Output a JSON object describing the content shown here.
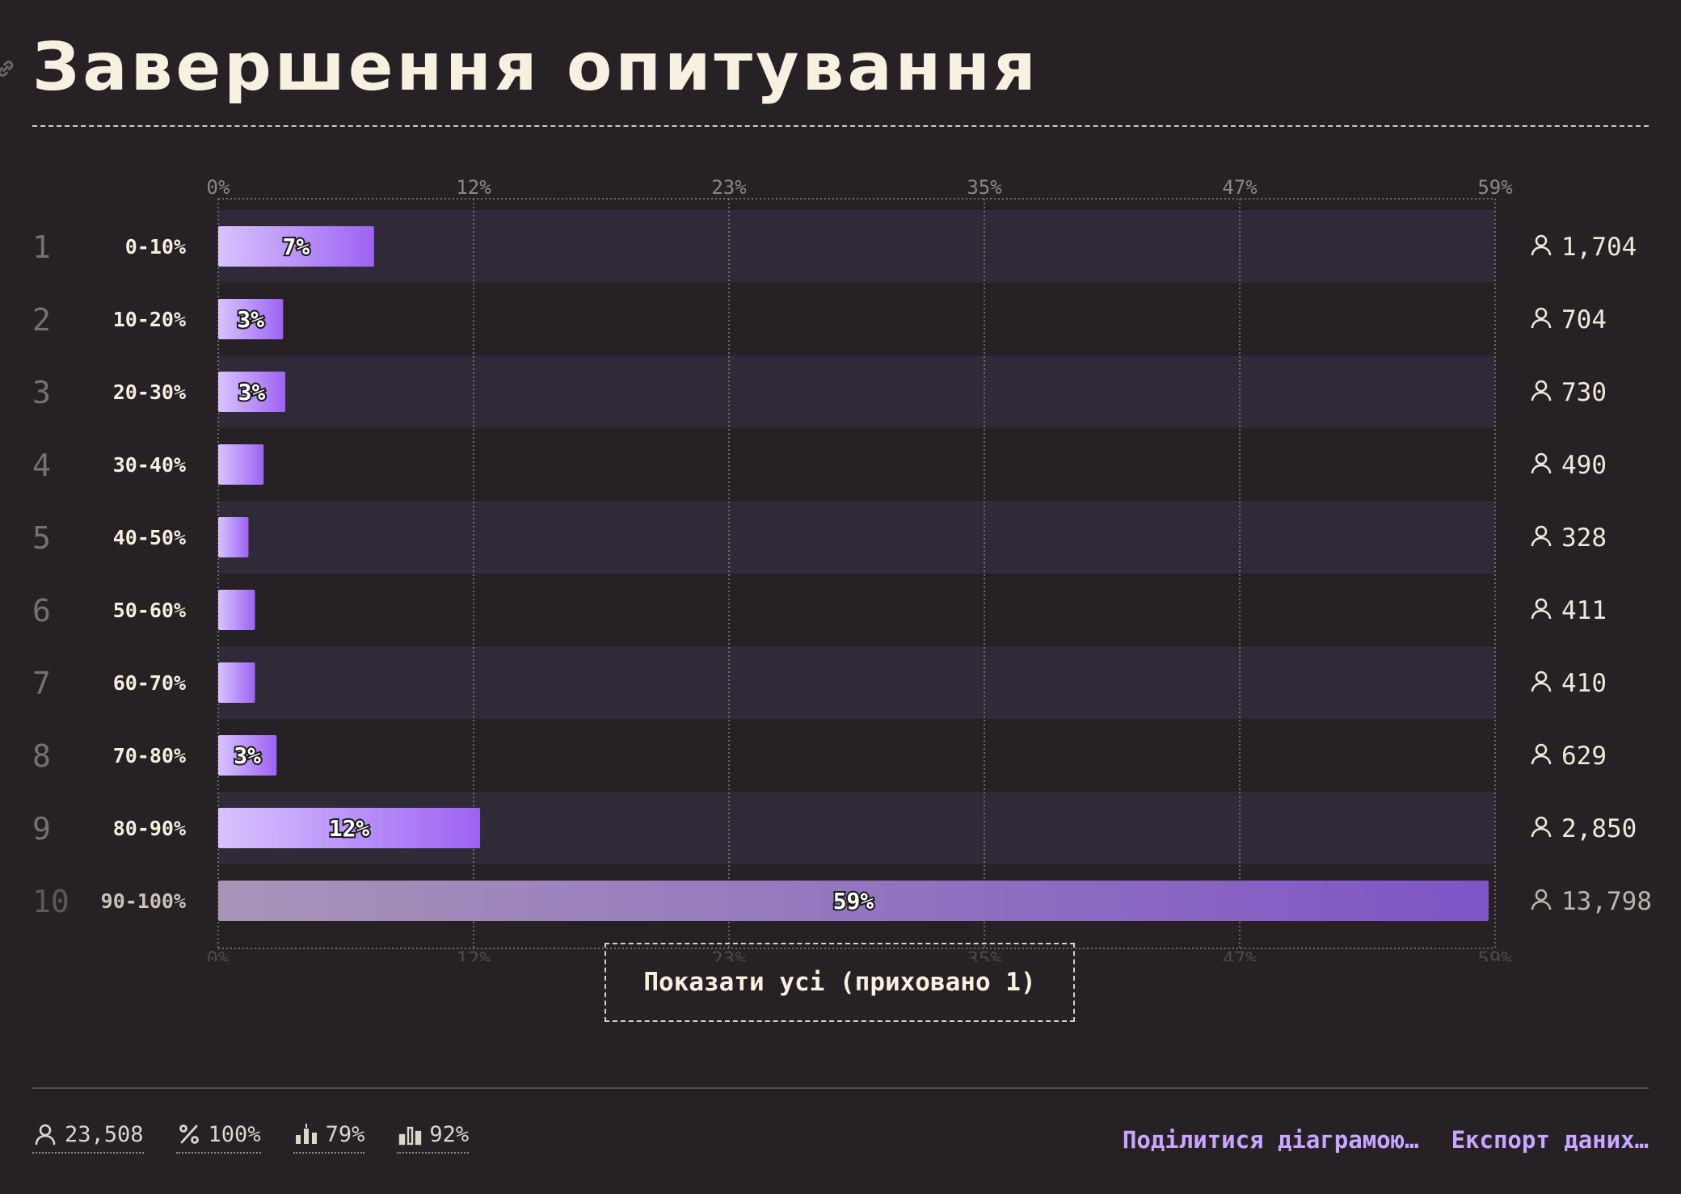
{
  "title": "Завершення опитування",
  "show_all_label": "Показати усі (приховано 1)",
  "axis_ticks": [
    "0%",
    "12%",
    "23%",
    "35%",
    "47%",
    "59%"
  ],
  "chart_data": {
    "type": "bar",
    "orientation": "horizontal",
    "title": "Завершення опитування",
    "xlim": [
      0,
      59
    ],
    "grid": true,
    "ranks": [
      "1",
      "2",
      "3",
      "4",
      "5",
      "6",
      "7",
      "8",
      "9",
      "10"
    ],
    "categories": [
      "0-10%",
      "10-20%",
      "20-30%",
      "30-40%",
      "40-50%",
      "50-60%",
      "60-70%",
      "70-80%",
      "80-90%",
      "90-100%"
    ],
    "values": [
      7.2,
      3.0,
      3.1,
      2.1,
      1.4,
      1.7,
      1.7,
      2.7,
      12.1,
      58.7
    ],
    "value_labels": [
      "7%",
      "3%",
      "3%",
      "",
      "",
      "",
      "",
      "3%",
      "12%",
      "59%"
    ],
    "counts": [
      "1,704",
      "704",
      "730",
      "490",
      "328",
      "411",
      "410",
      "629",
      "2,850",
      "13,798"
    ],
    "hidden_rows": [
      10
    ],
    "colors": {
      "bar_start": "#d8c3ff",
      "bar_end": "#9d63f2",
      "row_band": "#302a38",
      "background": "#252124"
    }
  },
  "footer": {
    "stats": [
      {
        "icon": "user-icon",
        "value": "23,508"
      },
      {
        "icon": "percent-icon",
        "value": "100%"
      },
      {
        "icon": "median-bars-icon",
        "value": "79%"
      },
      {
        "icon": "bars-icon",
        "value": "92%"
      }
    ],
    "actions": {
      "share": "Поділитися діаграмою…",
      "export": "Експорт даних…"
    }
  }
}
